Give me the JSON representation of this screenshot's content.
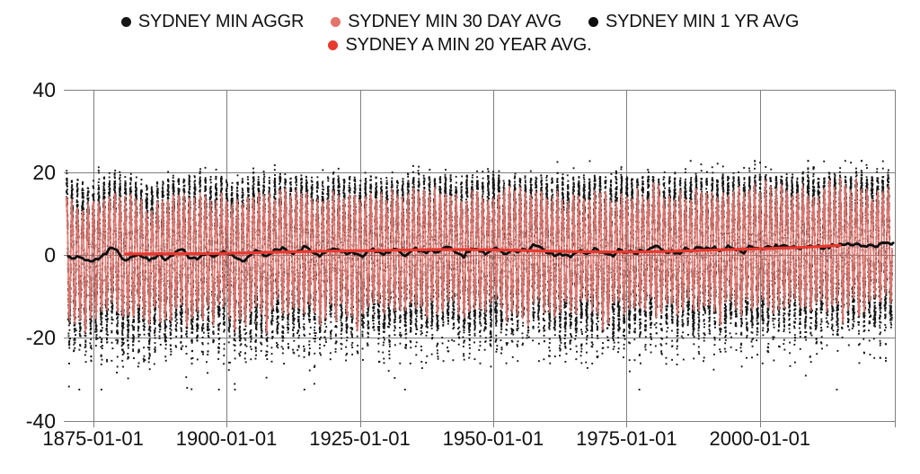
{
  "page": {
    "background": "#ffffff"
  },
  "chart_data": {
    "type": "scatter",
    "title": "",
    "xlabel": "",
    "ylabel": "",
    "grid": true,
    "grid_color": "#7f7f7f",
    "legend_position": "top",
    "x_axis": {
      "tick_labels": [
        "1875-01-01",
        "1900-01-01",
        "1925-01-01",
        "1950-01-01",
        "1975-01-01",
        "2000-01-01"
      ],
      "tick_years": [
        1875,
        1900,
        1925,
        1950,
        1975,
        2000
      ],
      "range_years": [
        1869.5,
        2025.3
      ],
      "unlabeled_right_edge_gridline": true
    },
    "y_axis": {
      "tick_labels": [
        "40",
        "20",
        "0",
        "-20",
        "-40"
      ],
      "ticks": [
        40,
        20,
        0,
        -20,
        -40
      ],
      "range": [
        -40,
        40
      ]
    },
    "series": [
      {
        "name": "SYDNEY MIN AGGR",
        "color": "#161616",
        "type": "scatter",
        "marker": "dot",
        "sampling": "daily",
        "years": [
          1870,
          2024
        ],
        "value_range": [
          -32.5,
          23
        ],
        "summer_cluster_range": [
          8,
          20
        ],
        "winter_spread_range": [
          -28,
          2
        ],
        "seasonal_amplitude_range": [
          13,
          16
        ]
      },
      {
        "name": "SYDNEY MIN 30 DAY AVG",
        "color": "#E5736B",
        "type": "line",
        "sampling": "rolling-30-day",
        "years": [
          1870,
          2024.8
        ],
        "seasonal_peak_range": [
          12,
          16.5
        ],
        "seasonal_trough_range": [
          -18,
          -8
        ]
      },
      {
        "name": "SYDNEY MIN 1 YR AVG",
        "color": "#0d0d0d",
        "type": "line",
        "sampling": "rolling-1-year",
        "year_start": 1870,
        "annual_values": [
          -0.3,
          -0.8,
          -0.5,
          -1.2,
          -1.5,
          -0.9,
          -0.4,
          0.3,
          1.8,
          1.2,
          -0.9,
          -1.1,
          -0.3,
          0.2,
          -0.6,
          -1.3,
          -0.8,
          0.4,
          -1.2,
          -0.2,
          0.8,
          1.4,
          0.2,
          -0.7,
          -1.0,
          0.1,
          0.6,
          -0.4,
          0.3,
          1.0,
          0.2,
          -0.5,
          -1.0,
          -1.3,
          0.0,
          1.2,
          0.8,
          -0.2,
          0.5,
          1.4,
          1.9,
          0.9,
          0.3,
          1.1,
          2.2,
          1.5,
          0.4,
          -0.3,
          0.6,
          1.2,
          1.4,
          0.8,
          0.2,
          0.9,
          0.3,
          -0.4,
          1.0,
          1.6,
          0.9,
          0.1,
          0.6,
          1.5,
          0.8,
          -0.2,
          0.9,
          1.8,
          1.1,
          0.5,
          1.3,
          0.7,
          1.6,
          2.0,
          1.2,
          0.4,
          -0.6,
          0.8,
          1.5,
          0.9,
          0.2,
          1.1,
          1.8,
          1.0,
          0.3,
          1.2,
          0.7,
          1.5,
          0.9,
          2.6,
          2.2,
          1.3,
          0.4,
          -0.2,
          0.5,
          0.1,
          -0.5,
          0.6,
          1.2,
          0.3,
          0.8,
          1.4,
          0.7,
          0.2,
          -0.3,
          1.5,
          0.6,
          1.0,
          0.4,
          1.3,
          0.8,
          1.7,
          2.3,
          1.4,
          0.6,
          1.2,
          0.5,
          0.9,
          1.5,
          1.1,
          1.9,
          1.3,
          1.6,
          2.1,
          1.0,
          1.4,
          1.8,
          1.2,
          0.8,
          1.5,
          2.0,
          1.7,
          1.4,
          2.2,
          1.6,
          1.9,
          2.4,
          1.8,
          2.1,
          1.5,
          1.9,
          2.3,
          2.0,
          1.6,
          2.2,
          2.6,
          2.1,
          2.5,
          2.9,
          2.4,
          2.7,
          2.2,
          2.5,
          2.1,
          2.8,
          3.0,
          2.6,
          2.8
        ]
      },
      {
        "name": "SYDNEY A MIN 20 YEAR AVG.",
        "color": "#E8392E",
        "type": "line",
        "sampling": "rolling-20-year",
        "points": [
          [
            1881,
            0.3
          ],
          [
            1890,
            0.35
          ],
          [
            1900,
            0.45
          ],
          [
            1910,
            0.75
          ],
          [
            1920,
            1.0
          ],
          [
            1930,
            1.15
          ],
          [
            1940,
            1.35
          ],
          [
            1950,
            1.3
          ],
          [
            1960,
            1.0
          ],
          [
            1970,
            0.8
          ],
          [
            1980,
            0.85
          ],
          [
            1990,
            1.2
          ],
          [
            2000,
            1.55
          ],
          [
            2008,
            1.9
          ],
          [
            2015,
            2.35
          ]
        ]
      }
    ]
  }
}
